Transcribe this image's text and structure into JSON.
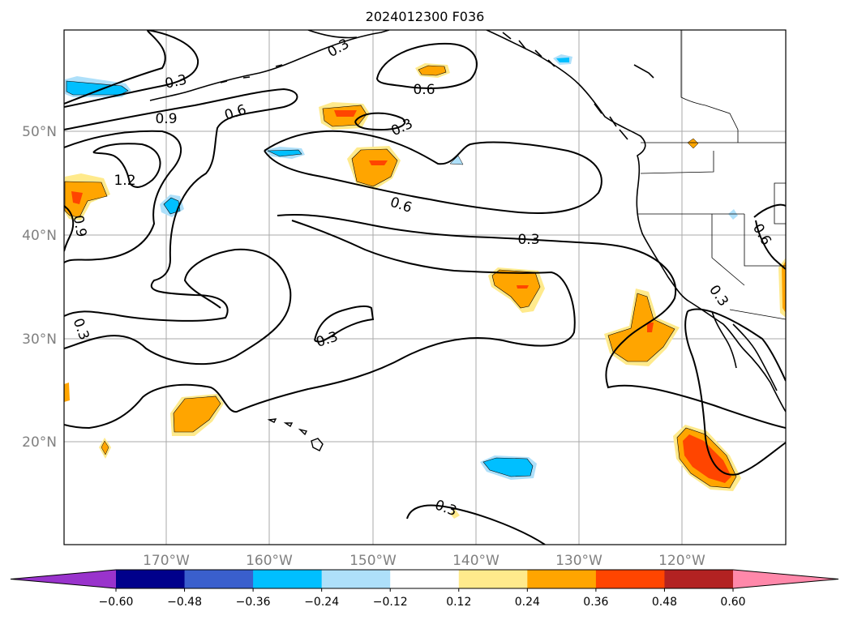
{
  "title": "2024012300 F036",
  "lat_labels": [
    "50°N",
    "40°N",
    "30°N",
    "20°N"
  ],
  "lon_labels": [
    "170°W",
    "160°W",
    "150°W",
    "140°W",
    "130°W",
    "120°W"
  ],
  "contour_labels": [
    "0.3",
    "0.3",
    "0.3",
    "0.3",
    "0.3",
    "0.3",
    "0.6",
    "0.6",
    "0.6",
    "0.6",
    "0.9",
    "0.9",
    "1.2",
    "0.3",
    "0.3"
  ],
  "colorbar": {
    "tick_labels": [
      "−0.60",
      "−0.48",
      "−0.36",
      "−0.24",
      "−0.12",
      "0.12",
      "0.24",
      "0.36",
      "0.48",
      "0.60"
    ],
    "colors": [
      "#9933cc",
      "#00008b",
      "#3a5fcd",
      "#00bfff",
      "#aee0fa",
      "#ffffff",
      "#ffea8c",
      "#ffa500",
      "#ff4500",
      "#b22222",
      "#ff88aa"
    ]
  },
  "colors": {
    "grid": "#aaaaaa",
    "tick_text": "#808080",
    "contour": "#000000"
  }
}
